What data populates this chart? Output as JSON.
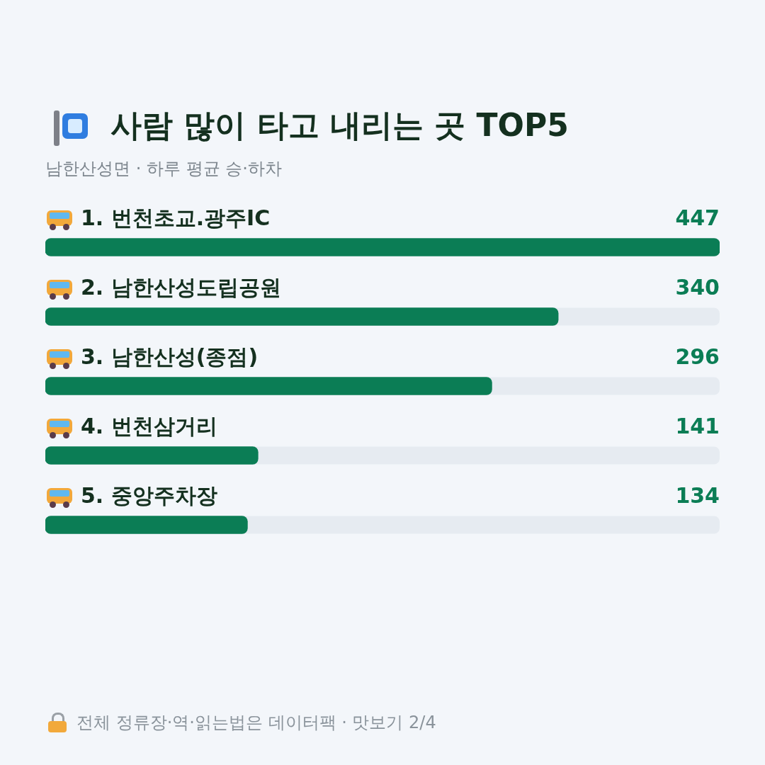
{
  "chart_data": {
    "type": "bar",
    "orientation": "horizontal",
    "title": "사람 많이 타고 내리는 곳 TOP5",
    "subtitle": "남한산성면 · 하루 평균 승·하차",
    "categories": [
      "1. 번천초교.광주IC",
      "2. 남한산성도립공원",
      "3. 남한산성(종점)",
      "4. 번천삼거리",
      "5. 중앙주차장"
    ],
    "values": [
      447,
      340,
      296,
      141,
      134
    ],
    "color": "#0b7d55",
    "xlim": [
      0,
      447
    ],
    "data_labels": true,
    "annotations": [
      "전체 정류장·역·읽는법은 데이터팩 · 맛보기 2/4"
    ]
  }
}
